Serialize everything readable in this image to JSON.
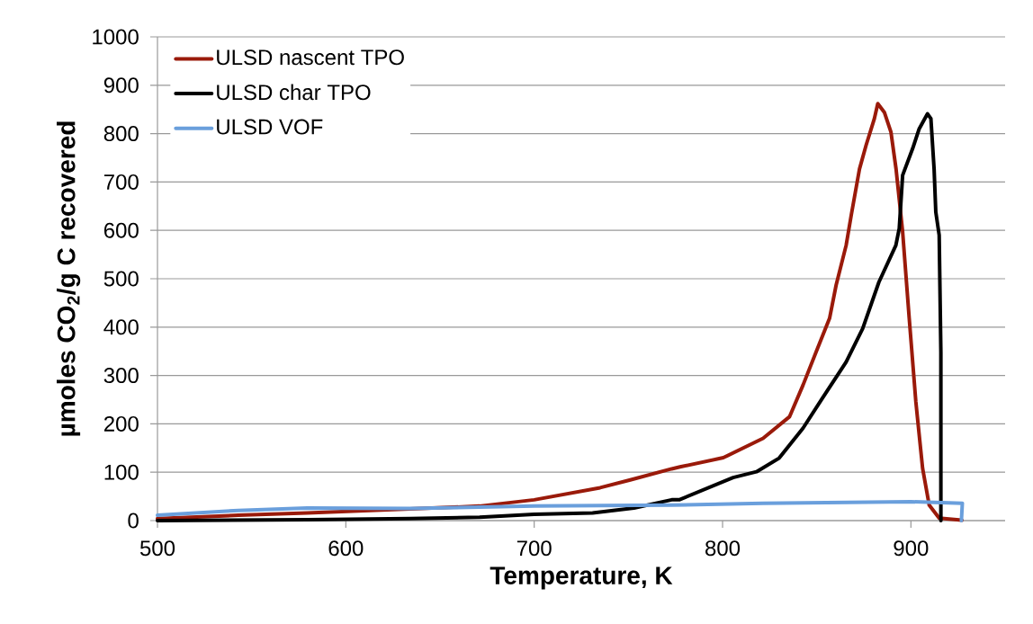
{
  "chart_data": {
    "type": "line",
    "xlabel": "Temperature, K",
    "ylabel": "µmoles CO$_{2}$/g C recovered",
    "xlim": [
      500,
      950
    ],
    "xticks": [
      500,
      600,
      700,
      800,
      900
    ],
    "ylim": [
      0,
      1000
    ],
    "yticks": [
      0,
      100,
      200,
      300,
      400,
      500,
      600,
      700,
      800,
      900,
      1000
    ],
    "grid": "y",
    "legend": "top left",
    "marker": "none",
    "line_style": "solid",
    "series": [
      {
        "name": "ULSD nascent TPO",
        "color": "#9a1a0a",
        "x": [
          500,
          543,
          579.5,
          634,
          671,
          700,
          735,
          751,
          773,
          777.4,
          800.4,
          821.5,
          835.6,
          842.7,
          849.7,
          856.8,
          860.3,
          865.6,
          868.3,
          872.7,
          876.2,
          880.6,
          882.4,
          885.9,
          889.4,
          892.1,
          895.6,
          899.1,
          902.6,
          906.2,
          909.7,
          915,
          927
        ],
        "values": [
          4,
          11,
          16,
          24,
          30,
          43,
          68,
          84,
          107,
          111,
          130,
          170,
          215,
          280,
          349,
          418,
          487,
          569,
          631,
          727,
          776,
          831,
          862,
          844,
          803,
          727,
          597,
          418,
          246,
          108,
          32,
          5,
          1
        ]
      },
      {
        "name": "ULSD char TPO",
        "color": "#000000",
        "x": [
          500,
          579.5,
          634,
          671,
          700,
          731,
          753,
          773,
          777,
          805.6,
          818,
          830,
          842.7,
          853,
          865.6,
          874.4,
          883,
          892,
          893.8,
          895.6,
          900.9,
          904.4,
          908.8,
          910.6,
          912.3,
          913.2,
          915,
          915.9,
          915.9
        ],
        "values": [
          0,
          2,
          4,
          7,
          13,
          16,
          26,
          43,
          43,
          89,
          101,
          129,
          191,
          253,
          328,
          397,
          493,
          569,
          604,
          714,
          769,
          810,
          841,
          831,
          727,
          638,
          590,
          349,
          0
        ]
      },
      {
        "name": "ULSD VOF",
        "color": "#6a9fdc",
        "x": [
          500,
          543,
          579.5,
          634,
          700,
          773,
          821.5,
          900,
          927.3,
          926.8
        ],
        "values": [
          11,
          21,
          26,
          25,
          30,
          32,
          36,
          39,
          36,
          0
        ]
      }
    ]
  }
}
